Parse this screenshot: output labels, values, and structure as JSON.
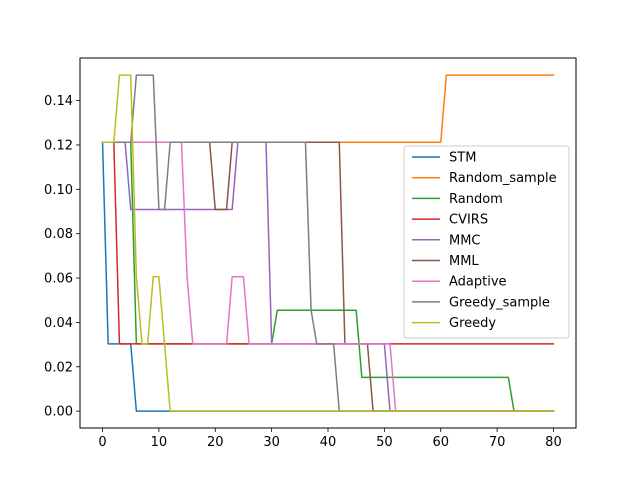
{
  "chart_data": {
    "type": "line",
    "title": "",
    "xlabel": "",
    "ylabel": "",
    "xlim": [
      -4,
      84
    ],
    "ylim": [
      -0.0076,
      0.1592
    ],
    "xticks": [
      0,
      10,
      20,
      30,
      40,
      50,
      60,
      70,
      80
    ],
    "xtick_labels": [
      "0",
      "10",
      "20",
      "30",
      "40",
      "50",
      "60",
      "70",
      "80"
    ],
    "yticks": [
      0.0,
      0.02,
      0.04,
      0.06,
      0.08,
      0.1,
      0.12,
      0.14
    ],
    "ytick_labels": [
      "0.00",
      "0.02",
      "0.04",
      "0.06",
      "0.08",
      "0.10",
      "0.12",
      "0.14"
    ],
    "grid": false,
    "legend_position": "center-right",
    "series": [
      {
        "name": "STM",
        "color": "#1f77b4",
        "x": [
          0,
          1,
          4,
          5,
          6,
          80
        ],
        "y": [
          0.1212,
          0.0303,
          0.0303,
          0.0303,
          0.0,
          0.0
        ]
      },
      {
        "name": "Random_sample",
        "color": "#ff7f0e",
        "x": [
          0,
          60,
          61,
          80
        ],
        "y": [
          0.1212,
          0.1212,
          0.1515,
          0.1515
        ]
      },
      {
        "name": "Random",
        "color": "#2ca02c",
        "x": [
          0,
          5,
          6,
          29,
          30,
          31,
          45,
          46,
          72,
          73,
          80
        ],
        "y": [
          0.1212,
          0.1212,
          0.0303,
          0.0303,
          0.0303,
          0.0455,
          0.0455,
          0.0152,
          0.0152,
          0.0,
          0.0
        ]
      },
      {
        "name": "CVIRS",
        "color": "#d62728",
        "x": [
          0,
          2,
          3,
          80
        ],
        "y": [
          0.1212,
          0.1212,
          0.0303,
          0.0303
        ]
      },
      {
        "name": "MMC",
        "color": "#9467bd",
        "x": [
          0,
          4,
          5,
          23,
          24,
          29,
          30,
          50,
          51,
          80
        ],
        "y": [
          0.1212,
          0.1212,
          0.0909,
          0.0909,
          0.1212,
          0.1212,
          0.0303,
          0.0303,
          0.0,
          0.0
        ]
      },
      {
        "name": "MML",
        "color": "#8c564b",
        "x": [
          0,
          19,
          20,
          22,
          23,
          42,
          43,
          47,
          48,
          80
        ],
        "y": [
          0.1212,
          0.1212,
          0.0909,
          0.0909,
          0.1212,
          0.1212,
          0.0303,
          0.0303,
          0.0,
          0.0
        ]
      },
      {
        "name": "Adaptive",
        "color": "#e377c2",
        "x": [
          0,
          14,
          15,
          16,
          22,
          23,
          25,
          26,
          51,
          52,
          80
        ],
        "y": [
          0.1212,
          0.1212,
          0.0606,
          0.0303,
          0.0303,
          0.0606,
          0.0606,
          0.0303,
          0.0303,
          0.0,
          0.0
        ]
      },
      {
        "name": "Greedy_sample",
        "color": "#7f7f7f",
        "x": [
          0,
          5,
          6,
          9,
          10,
          11,
          12,
          36,
          37,
          38,
          41,
          42,
          80
        ],
        "y": [
          0.1212,
          0.1212,
          0.1515,
          0.1515,
          0.0909,
          0.0909,
          0.1212,
          0.1212,
          0.0455,
          0.0303,
          0.0303,
          0.0,
          0.0
        ]
      },
      {
        "name": "Greedy",
        "color": "#bcbd22",
        "x": [
          0,
          2,
          3,
          5,
          6,
          7,
          8,
          9,
          10,
          11,
          12,
          80
        ],
        "y": [
          0.1212,
          0.1212,
          0.1515,
          0.1515,
          0.0606,
          0.0303,
          0.0303,
          0.0606,
          0.0606,
          0.0303,
          0.0,
          0.0
        ]
      }
    ]
  }
}
